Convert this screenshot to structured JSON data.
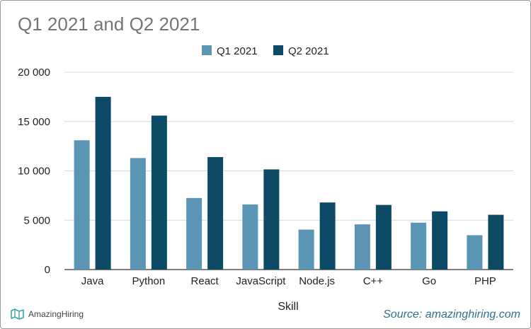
{
  "chart_data": {
    "type": "bar",
    "title": "Q1 2021 and Q2 2021",
    "xlabel": "Skill",
    "ylabel": "",
    "categories": [
      "Java",
      "Python",
      "React",
      "JavaScript",
      "Node.js",
      "C++",
      "Go",
      "PHP"
    ],
    "series": [
      {
        "name": "Q1 2021",
        "color": "#5b95b6",
        "values": [
          13100,
          11300,
          7250,
          6600,
          4050,
          4580,
          4750,
          3480
        ]
      },
      {
        "name": "Q2 2021",
        "color": "#0c4a66",
        "values": [
          17500,
          15600,
          11400,
          10150,
          6800,
          6550,
          5900,
          5550
        ]
      }
    ],
    "ylim": [
      0,
      20000
    ],
    "yticks": [
      0,
      5000,
      10000,
      15000,
      20000
    ],
    "ytick_labels": [
      "0",
      "5 000",
      "10 000",
      "15 000",
      "20 000"
    ],
    "grid": true,
    "legend_position": "top-center"
  },
  "source": "Source: amazinghiring.com",
  "logo_text": "AmazingHiring",
  "colors": {
    "gridline": "#d9d9d9",
    "axis": "#333333",
    "title": "#757575",
    "source": "#2f6f8f"
  }
}
